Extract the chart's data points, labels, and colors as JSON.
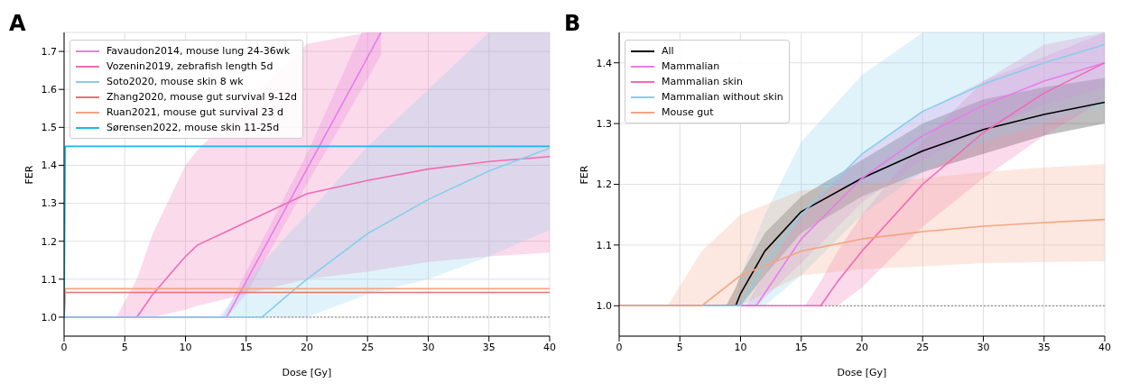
{
  "chart_data": [
    {
      "type": "line",
      "title": "A",
      "xlabel": "Dose [Gy]",
      "ylabel": "FER",
      "xlim": [
        0,
        40
      ],
      "xticks": [
        0,
        5,
        10,
        15,
        20,
        25,
        30,
        35,
        40
      ],
      "ylim": [
        0.95,
        1.75
      ],
      "yticks": [
        {
          "value": 1,
          "label": "1.0"
        },
        1.1,
        1.2,
        1.3,
        1.4,
        1.5,
        1.6,
        1.7
      ],
      "grid": true,
      "legend": "top left",
      "marker": "none",
      "line_style": "solid",
      "ref_lines": [
        {
          "axis": "y",
          "value": 1,
          "color": "#808080",
          "line_style": "dotted"
        }
      ],
      "series": [
        {
          "name": "Favaudon2014, mouse lung 24-36wk",
          "color": "#e87ce8",
          "x": [
            0,
            13,
            13.4,
            15,
            20,
            24.5,
            26.1
          ],
          "values": [
            1,
            1,
            1,
            1.094,
            1.39,
            1.655,
            1.75
          ],
          "lower": [
            null,
            1,
            1,
            1.06,
            1.35,
            1.6,
            1.69
          ],
          "upper": [
            null,
            1,
            1.02,
            1.12,
            1.43,
            1.75,
            1.75
          ]
        },
        {
          "name": "Vozenin2019, zebrafish length 5d",
          "color": "#f06bb4",
          "x": [
            0,
            4.3,
            6,
            7.3,
            10,
            11,
            20,
            25,
            30,
            35,
            40
          ],
          "values": [
            1,
            1,
            1,
            1.06,
            1.16,
            1.19,
            1.325,
            1.36,
            1.39,
            1.41,
            1.423
          ],
          "lower": [
            null,
            1,
            1,
            1,
            1.02,
            1.03,
            1.1,
            1.12,
            1.145,
            1.16,
            1.17
          ],
          "upper": [
            null,
            1,
            1.1,
            1.22,
            1.4,
            1.44,
            1.72,
            1.75,
            1.75,
            1.75,
            1.75
          ]
        },
        {
          "name": "Soto2020, mouse skin 8 wk",
          "color": "#87ceeb",
          "x": [
            0,
            12.7,
            16.3,
            18.5,
            20,
            25,
            30,
            35,
            40
          ],
          "values": [
            1,
            1,
            1,
            1.06,
            1.1,
            1.22,
            1.31,
            1.385,
            1.445
          ],
          "lower": [
            null,
            1,
            1,
            1,
            1,
            1.06,
            1.1,
            1.16,
            1.23
          ],
          "upper": [
            null,
            1,
            1.14,
            1.22,
            1.27,
            1.45,
            1.6,
            1.75,
            1.75
          ]
        },
        {
          "name": "Zhang2020, mouse gut survival 9-12d",
          "color": "#e8736b",
          "x": [
            0,
            0.1,
            40
          ],
          "values": [
            1,
            1.065,
            1.065
          ]
        },
        {
          "name": "Ruan2021, mouse gut survival 23 d",
          "color": "#f4a582",
          "x": [
            0,
            0.1,
            40
          ],
          "values": [
            1,
            1.075,
            1.075
          ]
        },
        {
          "name": "Sørensen2022, mouse skin 11-25d",
          "color": "#1ab8e8",
          "x": [
            0,
            0.1,
            40
          ],
          "values": [
            1,
            1.45,
            1.45
          ]
        }
      ]
    },
    {
      "type": "line",
      "title": "B",
      "xlabel": "Dose [Gy]",
      "ylabel": "FER",
      "xlim": [
        0,
        40
      ],
      "xticks": [
        0,
        5,
        10,
        15,
        20,
        25,
        30,
        35,
        40
      ],
      "ylim": [
        0.95,
        1.45
      ],
      "yticks": [
        {
          "value": 1,
          "label": "1.0"
        },
        1.1,
        1.2,
        1.3,
        1.4
      ],
      "grid": true,
      "legend": "top left",
      "marker": "none",
      "line_style": "solid",
      "ref_lines": [
        {
          "axis": "y",
          "value": 1,
          "color": "#808080",
          "line_style": "dotted"
        }
      ],
      "series": [
        {
          "name": "All",
          "color": "#000000",
          "x": [
            0,
            8.8,
            9.6,
            10,
            12,
            15,
            20,
            25,
            30,
            35,
            40
          ],
          "values": [
            1,
            1,
            1,
            1.02,
            1.09,
            1.155,
            1.21,
            1.255,
            1.29,
            1.315,
            1.335
          ],
          "lower": [
            null,
            1,
            1,
            1,
            1.05,
            1.12,
            1.18,
            1.22,
            1.25,
            1.28,
            1.3
          ],
          "upper": [
            null,
            1,
            1.03,
            1.05,
            1.12,
            1.18,
            1.24,
            1.3,
            1.34,
            1.36,
            1.375
          ]
        },
        {
          "name": "Mammalian",
          "color": "#e87ce8",
          "x": [
            0,
            10.5,
            11.3,
            15,
            20,
            25,
            30,
            35,
            40
          ],
          "values": [
            1,
            1,
            1,
            1.11,
            1.21,
            1.28,
            1.33,
            1.37,
            1.4
          ],
          "lower": [
            null,
            1,
            1,
            1.07,
            1.17,
            1.24,
            1.29,
            1.33,
            1.36
          ],
          "upper": [
            null,
            1,
            1.03,
            1.15,
            1.25,
            1.32,
            1.37,
            1.41,
            1.45
          ]
        },
        {
          "name": "Mammalian skin",
          "color": "#f06bb4",
          "x": [
            0,
            15.3,
            16.6,
            18,
            20,
            25,
            30,
            35,
            40
          ],
          "values": [
            1,
            1,
            1,
            1.04,
            1.09,
            1.2,
            1.285,
            1.35,
            1.4
          ],
          "lower": [
            null,
            1,
            1,
            1,
            1.03,
            1.13,
            1.21,
            1.28,
            1.34
          ],
          "upper": [
            null,
            1,
            1.04,
            1.09,
            1.15,
            1.27,
            1.37,
            1.43,
            1.45
          ]
        },
        {
          "name": "Mammalian without skin",
          "color": "#87ceeb",
          "x": [
            0,
            9.5,
            10,
            12,
            15,
            20,
            25,
            30,
            35,
            40
          ],
          "values": [
            1,
            1,
            1,
            1.07,
            1.15,
            1.25,
            1.32,
            1.365,
            1.4,
            1.43
          ],
          "lower": [
            null,
            1,
            1,
            1,
            1.05,
            1.15,
            1.22,
            1.27,
            1.3,
            1.33
          ],
          "upper": [
            null,
            1,
            1.05,
            1.15,
            1.27,
            1.38,
            1.45,
            1.45,
            1.45,
            1.45
          ]
        },
        {
          "name": "Mouse gut",
          "color": "#f4a582",
          "x": [
            0,
            4,
            6.8,
            10,
            15,
            20,
            25,
            30,
            35,
            40
          ],
          "values": [
            1,
            1,
            1,
            1.05,
            1.09,
            1.11,
            1.122,
            1.131,
            1.137,
            1.142
          ],
          "lower": [
            null,
            1,
            1,
            1,
            1.05,
            1.06,
            1.065,
            1.07,
            1.072,
            1.073
          ],
          "upper": [
            null,
            1,
            1.09,
            1.15,
            1.19,
            1.2,
            1.21,
            1.22,
            1.228,
            1.233
          ]
        }
      ]
    }
  ]
}
